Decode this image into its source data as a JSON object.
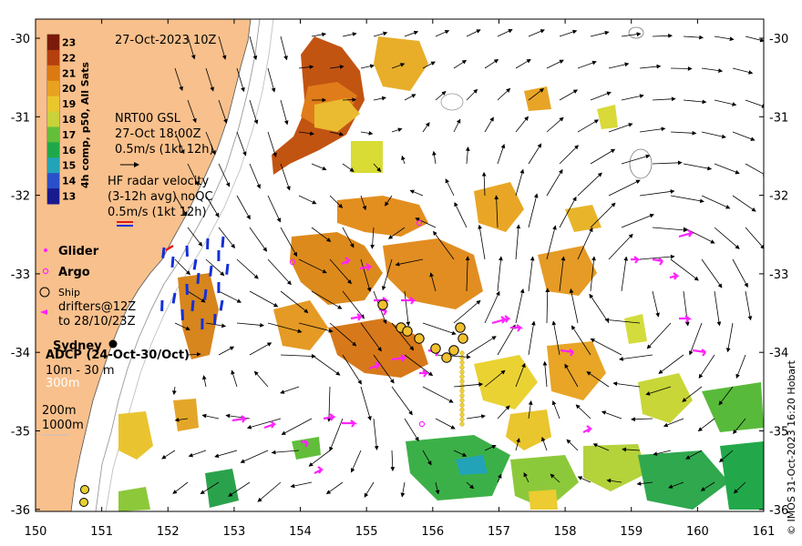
{
  "map": {
    "title": "27-Oct-2023 10Z",
    "x_ticks": [
      "150",
      "151",
      "152",
      "153",
      "154",
      "155",
      "156",
      "157",
      "158",
      "159",
      "160",
      "161"
    ],
    "y_ticks": [
      "-30",
      "-31",
      "-32",
      "-33",
      "-34",
      "-35",
      "-36"
    ],
    "colorbar": {
      "label": "4h comp, p50, All Sats",
      "ticks": [
        "23",
        "22",
        "21",
        "20",
        "19",
        "18",
        "17",
        "16",
        "15",
        "14",
        "13"
      ],
      "colors": [
        "#7a1a0a",
        "#b5400f",
        "#db7a12",
        "#e8a222",
        "#eac62e",
        "#c9d23a",
        "#63bf3a",
        "#1fa84a",
        "#22a3b8",
        "#2b4fc9",
        "#1a1a8f"
      ]
    },
    "gsl": {
      "line1": "NRT00 GSL",
      "line2": "27-Oct 18:00Z",
      "line3": "0.5m/s (1kt 12h)"
    },
    "hf_radar": {
      "line1": "HF radar velocity",
      "line2": "(3-12h avg) noQC",
      "line3": "0.5m/s (1kt 12h)"
    },
    "legend": {
      "glider": "Glider",
      "argo": "Argo",
      "ship": "Ship",
      "drifters_line1": "drifters@12Z",
      "drifters_line2": "to 28/10/23Z"
    },
    "city": "Sydney",
    "adcp": {
      "title": "ADCP (24-Oct-30/Oct)",
      "line1": "10m - 30 m",
      "line2": "300m"
    },
    "isobaths": {
      "line1": "200m",
      "line2": "1000m"
    },
    "credit": "© IMOS 31-Oct-2023 16:20 Hobart",
    "colors": {
      "land": "#f8c08c",
      "drifter": "#ff22ff",
      "radar_blue": "#1430d8",
      "radar_red": "#e01818",
      "frame": "#000000"
    }
  }
}
